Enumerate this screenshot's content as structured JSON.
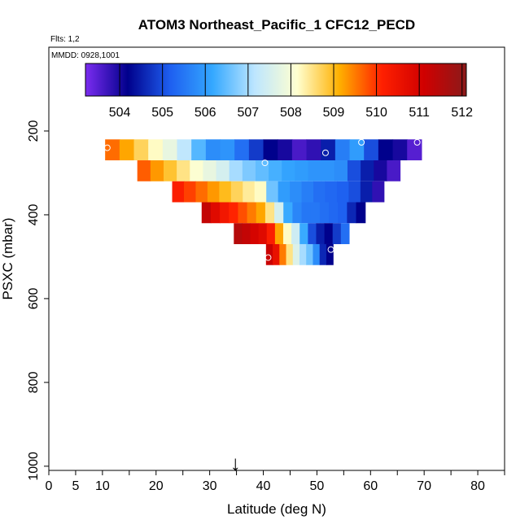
{
  "chart_data": {
    "type": "heatmap",
    "title": "ATOM3 Northeast_Pacific_1 CFC12_PECD",
    "flights_label": "Flts: 1,2",
    "dates_label": "MMDD: 0928,1001",
    "xlabel": "Latitude (deg N)",
    "ylabel": "PSXC (mbar)",
    "xlim": [
      0,
      85
    ],
    "ylim": [
      1010,
      0
    ],
    "x_ticks": [
      0,
      5,
      10,
      20,
      30,
      40,
      50,
      60,
      70,
      80
    ],
    "y_ticks": [
      200,
      400,
      600,
      800,
      1000
    ],
    "colorbar": {
      "min": 503.2,
      "max": 512.1,
      "ticks": [
        504,
        505,
        506,
        507,
        508,
        509,
        510,
        511,
        512
      ],
      "colors": [
        "#7b2cf0",
        "#00008b",
        "#1e5ff0",
        "#34a8ff",
        "#bde6ff",
        "#ffffd0",
        "#ffb000",
        "#ff2000",
        "#d00000",
        "#8b1a1a"
      ]
    },
    "rows": [
      {
        "pressure_top": 220,
        "pressure_bottom": 270,
        "lat_start": 10.5,
        "lat_end": 69.5,
        "values": [
          509.6,
          509.2,
          508.7,
          508.2,
          507.8,
          507.2,
          506.4,
          505.8,
          505.9,
          505.4,
          504.8,
          504.2,
          504.0,
          503.6,
          503.8,
          504.5,
          505.6,
          506.0,
          505.0,
          504.2,
          504.0,
          503.5
        ]
      },
      {
        "pressure_top": 270,
        "pressure_bottom": 320,
        "lat_start": 16.5,
        "lat_end": 65.5,
        "values": [
          509.7,
          509.3,
          508.9,
          508.5,
          508.1,
          507.8,
          507.5,
          507.0,
          506.7,
          506.5,
          506.3,
          506.1,
          506.0,
          505.9,
          505.9,
          505.8,
          505.0,
          504.5,
          504.0,
          503.6
        ]
      },
      {
        "pressure_top": 320,
        "pressure_bottom": 370,
        "lat_start": 23,
        "lat_end": 62.5,
        "values": [
          510.2,
          509.9,
          509.6,
          509.3,
          509.0,
          508.7,
          508.4,
          508.2,
          506.6,
          506.0,
          505.8,
          505.6,
          505.4,
          505.3,
          505.2,
          505.0,
          504.5,
          503.8
        ]
      },
      {
        "pressure_top": 370,
        "pressure_bottom": 420,
        "lat_start": 28.5,
        "lat_end": 59,
        "values": [
          511.3,
          510.8,
          510.4,
          510.1,
          509.8,
          509.5,
          509.2,
          508.5,
          507.5,
          506.2,
          505.7,
          505.5,
          505.5,
          505.4,
          505.3,
          505.2,
          504.6,
          504.2
        ]
      },
      {
        "pressure_top": 420,
        "pressure_bottom": 470,
        "lat_start": 34.5,
        "lat_end": 56,
        "values": [
          511.5,
          511.3,
          511.0,
          510.8,
          510.2,
          509.2,
          508.2,
          507.4,
          506.2,
          505.0,
          504.5,
          504.2,
          504.8,
          505.4
        ]
      },
      {
        "pressure_top": 470,
        "pressure_bottom": 520,
        "lat_start": 40.5,
        "lat_end": 53,
        "values": [
          511.2,
          510.6,
          509.5,
          508.5,
          507.6,
          507.0,
          506.6,
          505.8,
          504.6,
          504.2
        ]
      }
    ],
    "samples": [
      {
        "lat": 10.9,
        "pressure": 240
      },
      {
        "lat": 40.3,
        "pressure": 276
      },
      {
        "lat": 51.6,
        "pressure": 252
      },
      {
        "lat": 58.3,
        "pressure": 227
      },
      {
        "lat": 68.7,
        "pressure": 227
      },
      {
        "lat": 52.6,
        "pressure": 483
      },
      {
        "lat": 40.9,
        "pressure": 502
      }
    ],
    "marker": {
      "lat": 34.8,
      "symbol": "↓"
    }
  }
}
